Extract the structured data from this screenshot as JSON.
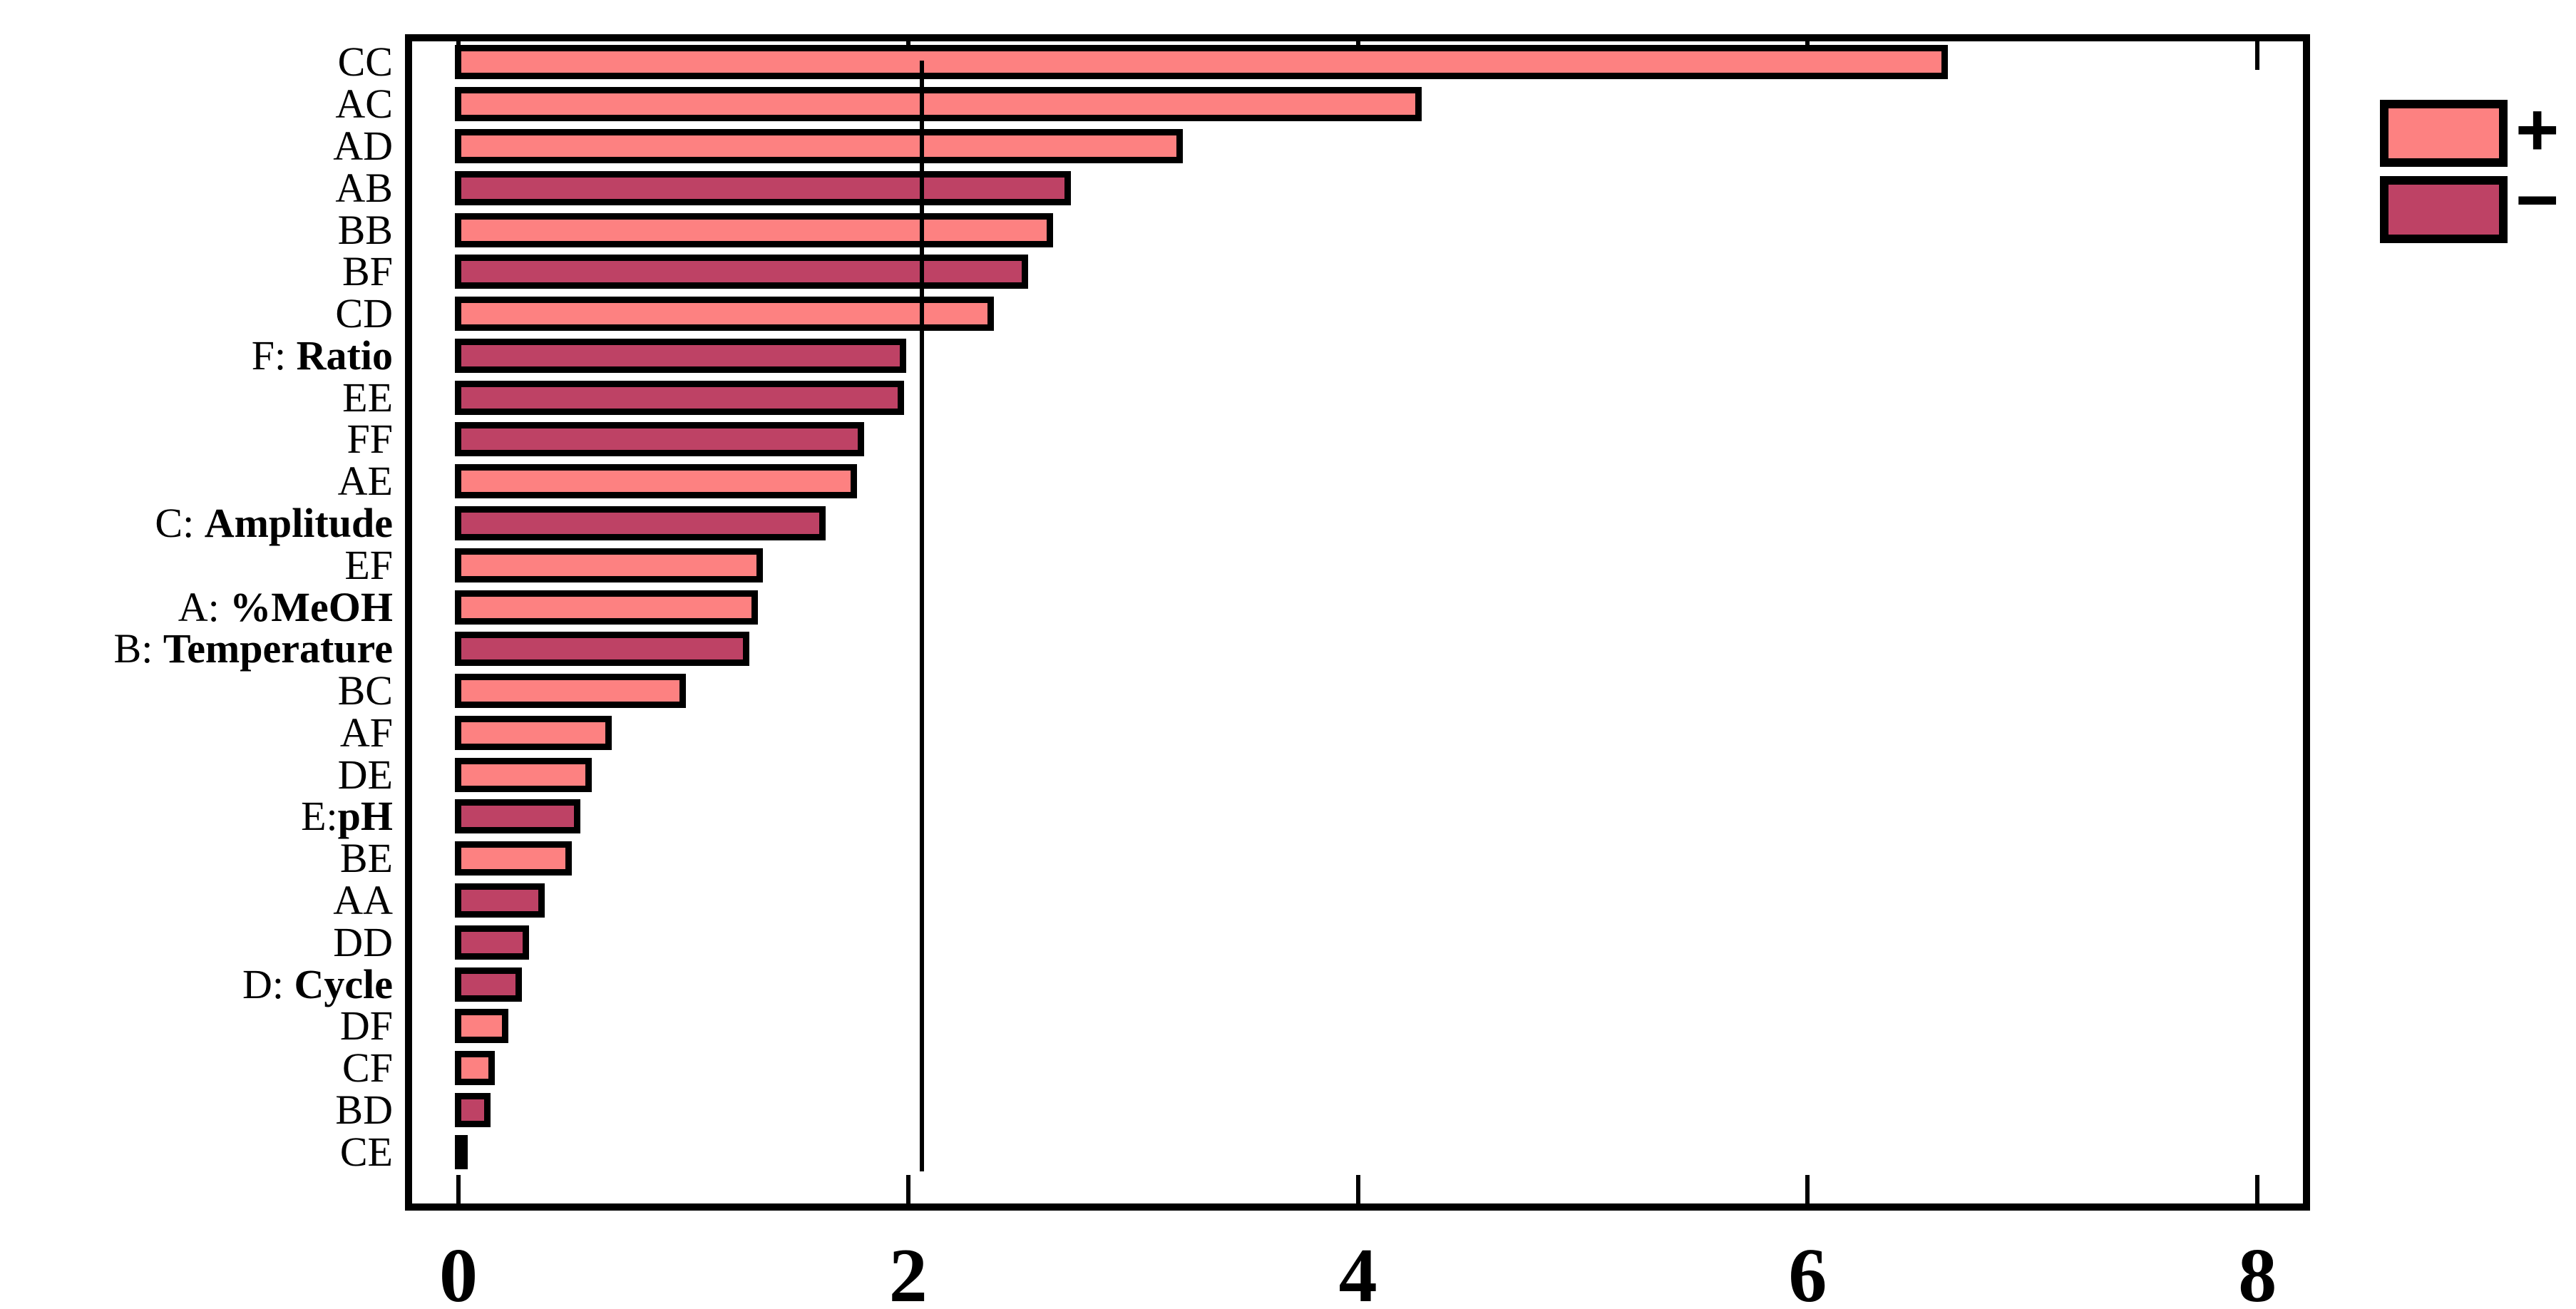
{
  "chart_data": {
    "type": "bar",
    "orientation": "horizontal",
    "title": "",
    "xlabel": "",
    "ylabel": "",
    "x_axis": {
      "tick_labels": [
        "0",
        "2",
        "4",
        "6",
        "8"
      ],
      "tick_values": [
        0,
        2,
        4,
        6,
        8
      ],
      "min": 0,
      "max": 8.23,
      "grid": false
    },
    "reference_line": {
      "value": 2.06
    },
    "colors": {
      "positive": "#FD8181",
      "negative": "#BE4265",
      "outline": "#000000"
    },
    "legend": {
      "position": "top-right-outside",
      "entries": [
        {
          "label": "+",
          "sign": "positive"
        },
        {
          "label": "−",
          "sign": "negative"
        }
      ]
    },
    "bars": [
      {
        "prefix": "",
        "name": "CC",
        "factor": false,
        "value": 6.61,
        "sign": "positive"
      },
      {
        "prefix": "",
        "name": "AC",
        "factor": false,
        "value": 4.27,
        "sign": "positive"
      },
      {
        "prefix": "",
        "name": "AD",
        "factor": false,
        "value": 3.21,
        "sign": "positive"
      },
      {
        "prefix": "",
        "name": "AB",
        "factor": false,
        "value": 2.71,
        "sign": "negative"
      },
      {
        "prefix": "",
        "name": "BB",
        "factor": false,
        "value": 2.63,
        "sign": "positive"
      },
      {
        "prefix": "",
        "name": "BF",
        "factor": false,
        "value": 2.52,
        "sign": "negative"
      },
      {
        "prefix": "",
        "name": "CD",
        "factor": false,
        "value": 2.37,
        "sign": "positive"
      },
      {
        "prefix": "F: ",
        "name": "Ratio",
        "factor": true,
        "value": 1.98,
        "sign": "negative"
      },
      {
        "prefix": "",
        "name": "EE",
        "factor": false,
        "value": 1.97,
        "sign": "negative"
      },
      {
        "prefix": "",
        "name": "FF",
        "factor": false,
        "value": 1.79,
        "sign": "negative"
      },
      {
        "prefix": "",
        "name": "AE",
        "factor": false,
        "value": 1.76,
        "sign": "positive"
      },
      {
        "prefix": "C: ",
        "name": "Amplitude",
        "factor": true,
        "value": 1.62,
        "sign": "negative"
      },
      {
        "prefix": "",
        "name": "EF",
        "factor": false,
        "value": 1.34,
        "sign": "positive"
      },
      {
        "prefix": "A: ",
        "name": "%MeOH",
        "factor": true,
        "value": 1.32,
        "sign": "positive"
      },
      {
        "prefix": "B: ",
        "name": "Temperature",
        "factor": true,
        "value": 1.28,
        "sign": "negative"
      },
      {
        "prefix": "",
        "name": "BC",
        "factor": false,
        "value": 1.0,
        "sign": "positive"
      },
      {
        "prefix": "",
        "name": "AF",
        "factor": false,
        "value": 0.67,
        "sign": "positive"
      },
      {
        "prefix": "",
        "name": "DE",
        "factor": false,
        "value": 0.58,
        "sign": "positive"
      },
      {
        "prefix": "E:",
        "name": "pH",
        "factor": true,
        "value": 0.53,
        "sign": "negative"
      },
      {
        "prefix": "",
        "name": "BE",
        "factor": false,
        "value": 0.49,
        "sign": "positive"
      },
      {
        "prefix": "",
        "name": "AA",
        "factor": false,
        "value": 0.37,
        "sign": "negative"
      },
      {
        "prefix": "",
        "name": "DD",
        "factor": false,
        "value": 0.3,
        "sign": "negative"
      },
      {
        "prefix": "D: ",
        "name": "Cycle",
        "factor": true,
        "value": 0.27,
        "sign": "negative"
      },
      {
        "prefix": "",
        "name": "DF",
        "factor": false,
        "value": 0.21,
        "sign": "positive"
      },
      {
        "prefix": "",
        "name": "CF",
        "factor": false,
        "value": 0.15,
        "sign": "positive"
      },
      {
        "prefix": "",
        "name": "BD",
        "factor": false,
        "value": 0.13,
        "sign": "negative"
      },
      {
        "prefix": "",
        "name": "CE",
        "factor": false,
        "value": 0.02,
        "sign": "positive"
      }
    ]
  }
}
